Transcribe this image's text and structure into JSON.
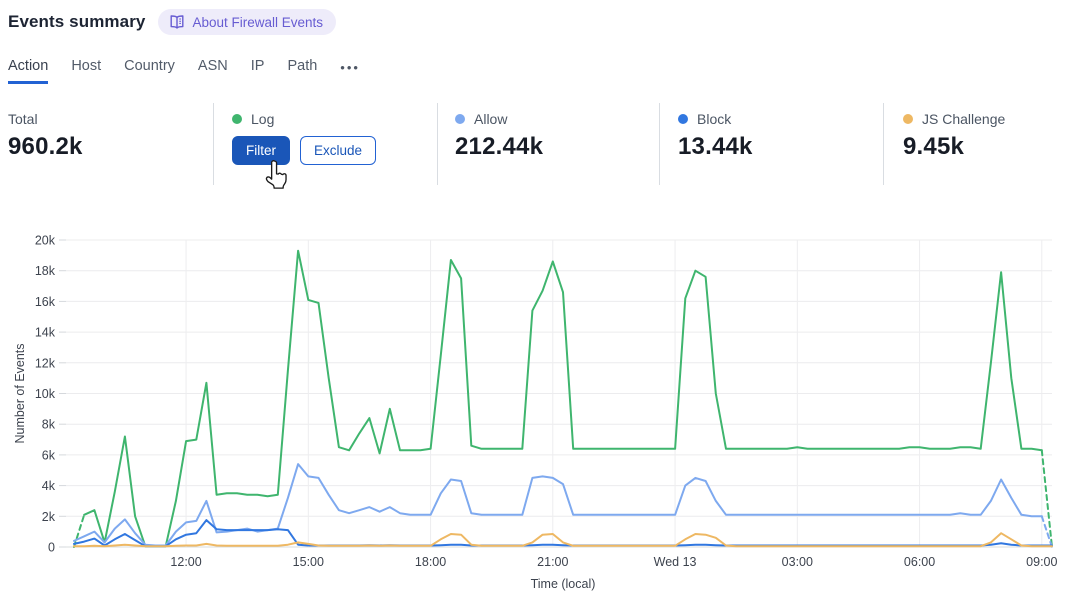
{
  "header": {
    "title": "Events summary",
    "about_badge": "About Firewall Events"
  },
  "tabs": {
    "items": [
      "Action",
      "Host",
      "Country",
      "ASN",
      "IP",
      "Path"
    ],
    "active": "Action",
    "more_label": "•••"
  },
  "stats": {
    "total": {
      "label": "Total",
      "value": "960.2k"
    },
    "log": {
      "label": "Log",
      "filter_label": "Filter",
      "exclude_label": "Exclude"
    },
    "allow": {
      "label": "Allow",
      "value": "212.44k"
    },
    "block": {
      "label": "Block",
      "value": "13.44k"
    },
    "js_challenge": {
      "label": "JS Challenge",
      "value": "9.45k"
    }
  },
  "colors": {
    "log_green": "#3fb56e",
    "allow_blue": "#7ea9ef",
    "block_blue": "#3177e0",
    "js_challenge_orange": "#eeb863",
    "action_button_blue": "#1a56b8",
    "tab_underline_blue": "#2262d3",
    "badge_purple": "#675cd2",
    "badge_bg": "#eeecfa",
    "grid_line": "#ececee",
    "axis_text": "#3d434e"
  },
  "chart_data": {
    "type": "line",
    "xlabel": "Time (local)",
    "ylabel": "Number of Events",
    "unit": "k (thousands of events)",
    "ylim_k": [
      0,
      20
    ],
    "grid": true,
    "legend_position": "stats-row-above-chart",
    "y_ticks": [
      "0",
      "2k",
      "4k",
      "6k",
      "8k",
      "10k",
      "12k",
      "14k",
      "16k",
      "18k",
      "20k"
    ],
    "interval_minutes": 15,
    "start_time": "09:15",
    "x_ticks": [
      {
        "label": "12:00",
        "minute": 165
      },
      {
        "label": "15:00",
        "minute": 345
      },
      {
        "label": "18:00",
        "minute": 525
      },
      {
        "label": "21:00",
        "minute": 705
      },
      {
        "label": "Wed 13",
        "minute": 885
      },
      {
        "label": "03:00",
        "minute": 1065
      },
      {
        "label": "06:00",
        "minute": 1245
      },
      {
        "label": "09:00",
        "minute": 1425
      }
    ],
    "series_meta": [
      {
        "name": "Log",
        "color_key": "log_green",
        "dash_start": true,
        "dash_end": true
      },
      {
        "name": "Allow",
        "color_key": "allow_blue",
        "dash_start": false,
        "dash_end": true
      },
      {
        "name": "Block",
        "color_key": "block_blue",
        "dash_start": false,
        "dash_end": false
      },
      {
        "name": "JS Challenge",
        "color_key": "js_challenge_orange",
        "dash_start": false,
        "dash_end": false
      }
    ],
    "row_columns": [
      "time",
      "log_k",
      "allow_k",
      "block_k",
      "js_challenge_k"
    ],
    "rows": [
      [
        "09:15",
        0,
        0.4,
        0.2,
        0.05
      ],
      [
        "09:30",
        2.1,
        0.7,
        0.35,
        0.05
      ],
      [
        "09:45",
        2.4,
        1.0,
        0.55,
        0.08
      ],
      [
        "10:00",
        0.3,
        0.3,
        0.1,
        0.05
      ],
      [
        "10:15",
        3.6,
        1.2,
        0.5,
        0.1
      ],
      [
        "10:30",
        7.2,
        1.8,
        0.85,
        0.15
      ],
      [
        "10:45",
        2.0,
        0.9,
        0.45,
        0.1
      ],
      [
        "11:00",
        0.05,
        0.15,
        0.05,
        0.05
      ],
      [
        "11:15",
        0.05,
        0.1,
        0.05,
        0.05
      ],
      [
        "11:30",
        0.05,
        0.1,
        0.05,
        0.05
      ],
      [
        "11:45",
        3.0,
        1.0,
        0.5,
        0.08
      ],
      [
        "12:00",
        6.9,
        1.6,
        0.8,
        0.1
      ],
      [
        "12:15",
        7.0,
        1.7,
        0.9,
        0.1
      ],
      [
        "12:30",
        10.7,
        3.0,
        1.75,
        0.2
      ],
      [
        "12:45",
        3.4,
        0.95,
        1.15,
        0.1
      ],
      [
        "13:00",
        3.5,
        1.0,
        1.1,
        0.08
      ],
      [
        "13:15",
        3.5,
        1.1,
        1.1,
        0.08
      ],
      [
        "13:30",
        3.4,
        1.2,
        1.1,
        0.08
      ],
      [
        "13:45",
        3.4,
        1.0,
        1.1,
        0.08
      ],
      [
        "14:00",
        3.3,
        1.1,
        1.1,
        0.08
      ],
      [
        "14:15",
        3.4,
        1.2,
        1.15,
        0.08
      ],
      [
        "14:30",
        11.5,
        3.2,
        1.1,
        0.15
      ],
      [
        "14:45",
        19.3,
        5.4,
        0.15,
        0.3
      ],
      [
        "15:00",
        16.1,
        4.6,
        0.1,
        0.2
      ],
      [
        "15:15",
        15.9,
        4.5,
        0.1,
        0.1
      ],
      [
        "15:30",
        11.0,
        3.4,
        0.1,
        0.08
      ],
      [
        "15:45",
        6.5,
        2.4,
        0.1,
        0.08
      ],
      [
        "16:00",
        6.3,
        2.2,
        0.1,
        0.08
      ],
      [
        "16:15",
        7.4,
        2.4,
        0.1,
        0.08
      ],
      [
        "16:30",
        8.4,
        2.6,
        0.12,
        0.1
      ],
      [
        "16:45",
        6.1,
        2.3,
        0.1,
        0.08
      ],
      [
        "17:00",
        9.0,
        2.6,
        0.12,
        0.1
      ],
      [
        "17:15",
        6.3,
        2.2,
        0.1,
        0.08
      ],
      [
        "17:30",
        6.3,
        2.1,
        0.1,
        0.08
      ],
      [
        "17:45",
        6.3,
        2.1,
        0.1,
        0.08
      ],
      [
        "18:00",
        6.4,
        2.1,
        0.1,
        0.08
      ],
      [
        "18:15",
        12.5,
        3.5,
        0.12,
        0.5
      ],
      [
        "18:30",
        18.7,
        4.4,
        0.15,
        0.85
      ],
      [
        "18:45",
        17.5,
        4.3,
        0.15,
        0.8
      ],
      [
        "19:00",
        6.6,
        2.2,
        0.1,
        0.15
      ],
      [
        "19:15",
        6.4,
        2.1,
        0.1,
        0.08
      ],
      [
        "19:30",
        6.4,
        2.1,
        0.1,
        0.08
      ],
      [
        "19:45",
        6.4,
        2.1,
        0.1,
        0.08
      ],
      [
        "20:00",
        6.4,
        2.1,
        0.1,
        0.08
      ],
      [
        "20:15",
        6.4,
        2.1,
        0.1,
        0.08
      ],
      [
        "20:30",
        15.4,
        4.5,
        0.12,
        0.3
      ],
      [
        "20:45",
        16.7,
        4.6,
        0.15,
        0.8
      ],
      [
        "21:00",
        18.6,
        4.5,
        0.15,
        0.85
      ],
      [
        "21:15",
        16.6,
        4.1,
        0.12,
        0.3
      ],
      [
        "21:30",
        6.4,
        2.1,
        0.1,
        0.08
      ],
      [
        "21:45",
        6.4,
        2.1,
        0.1,
        0.08
      ],
      [
        "22:00",
        6.4,
        2.1,
        0.1,
        0.08
      ],
      [
        "22:15",
        6.4,
        2.1,
        0.1,
        0.08
      ],
      [
        "22:30",
        6.4,
        2.1,
        0.1,
        0.08
      ],
      [
        "22:45",
        6.4,
        2.1,
        0.1,
        0.08
      ],
      [
        "23:00",
        6.4,
        2.1,
        0.1,
        0.08
      ],
      [
        "23:15",
        6.4,
        2.1,
        0.1,
        0.08
      ],
      [
        "23:30",
        6.4,
        2.1,
        0.1,
        0.08
      ],
      [
        "23:45",
        6.4,
        2.1,
        0.1,
        0.08
      ],
      [
        "00:00",
        6.4,
        2.1,
        0.1,
        0.08
      ],
      [
        "00:15",
        16.2,
        4.0,
        0.12,
        0.5
      ],
      [
        "00:30",
        18.0,
        4.5,
        0.15,
        0.85
      ],
      [
        "00:45",
        17.6,
        4.3,
        0.15,
        0.8
      ],
      [
        "01:00",
        10.0,
        3.0,
        0.12,
        0.6
      ],
      [
        "01:15",
        6.4,
        2.1,
        0.1,
        0.1
      ],
      [
        "01:30",
        6.4,
        2.1,
        0.1,
        0.05
      ],
      [
        "01:45",
        6.4,
        2.1,
        0.1,
        0.05
      ],
      [
        "02:00",
        6.4,
        2.1,
        0.1,
        0.05
      ],
      [
        "02:15",
        6.4,
        2.1,
        0.1,
        0.05
      ],
      [
        "02:30",
        6.4,
        2.1,
        0.1,
        0.05
      ],
      [
        "02:45",
        6.4,
        2.1,
        0.1,
        0.05
      ],
      [
        "03:00",
        6.5,
        2.1,
        0.1,
        0.05
      ],
      [
        "03:15",
        6.4,
        2.1,
        0.1,
        0.05
      ],
      [
        "03:30",
        6.4,
        2.1,
        0.1,
        0.05
      ],
      [
        "03:45",
        6.4,
        2.1,
        0.1,
        0.05
      ],
      [
        "04:00",
        6.4,
        2.1,
        0.1,
        0.05
      ],
      [
        "04:15",
        6.4,
        2.1,
        0.1,
        0.05
      ],
      [
        "04:30",
        6.4,
        2.1,
        0.1,
        0.05
      ],
      [
        "04:45",
        6.4,
        2.1,
        0.1,
        0.05
      ],
      [
        "05:00",
        6.4,
        2.1,
        0.1,
        0.05
      ],
      [
        "05:15",
        6.4,
        2.1,
        0.1,
        0.05
      ],
      [
        "05:30",
        6.4,
        2.1,
        0.1,
        0.05
      ],
      [
        "05:45",
        6.5,
        2.1,
        0.1,
        0.05
      ],
      [
        "06:00",
        6.5,
        2.1,
        0.1,
        0.05
      ],
      [
        "06:15",
        6.4,
        2.1,
        0.1,
        0.05
      ],
      [
        "06:30",
        6.4,
        2.1,
        0.1,
        0.05
      ],
      [
        "06:45",
        6.4,
        2.1,
        0.1,
        0.05
      ],
      [
        "07:00",
        6.5,
        2.2,
        0.1,
        0.05
      ],
      [
        "07:15",
        6.5,
        2.1,
        0.1,
        0.05
      ],
      [
        "07:30",
        6.4,
        2.1,
        0.1,
        0.05
      ],
      [
        "07:45",
        12.0,
        3.0,
        0.15,
        0.3
      ],
      [
        "08:00",
        17.9,
        4.4,
        0.25,
        0.9
      ],
      [
        "08:15",
        11.0,
        3.2,
        0.15,
        0.5
      ],
      [
        "08:30",
        6.4,
        2.1,
        0.1,
        0.1
      ],
      [
        "08:45",
        6.4,
        2.0,
        0.1,
        0.05
      ],
      [
        "09:00",
        6.3,
        2.0,
        0.1,
        0.05
      ],
      [
        "09:15",
        0,
        0,
        0.1,
        0.05
      ]
    ]
  }
}
